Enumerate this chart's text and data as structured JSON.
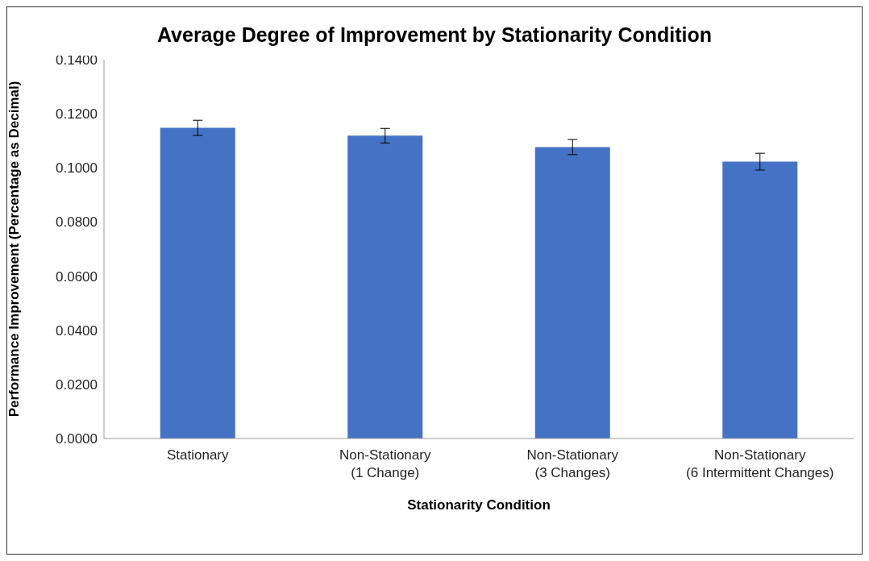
{
  "chart_data": {
    "type": "bar",
    "title": "Average Degree of Improvement by Stationarity Condition",
    "xlabel": "Stationarity Condition",
    "ylabel": "Performance Improvement (Percentage as Decimal)",
    "categories": [
      "Stationary",
      "Non-Stationary\n(1 Change)",
      "Non-Stationary\n(3 Changes)",
      "Non-Stationary\n(6 Intermittent Changes)"
    ],
    "values": [
      0.1148,
      0.1119,
      0.1077,
      0.1023
    ],
    "errors": [
      0.0028,
      0.0027,
      0.0028,
      0.0031
    ],
    "color": "#4472c4",
    "ylim": [
      0,
      0.14
    ],
    "yticks": [
      {
        "value": 0,
        "label": "0.0000"
      },
      {
        "value": 0.02,
        "label": "0.0200"
      },
      {
        "value": 0.04,
        "label": "0.0400"
      },
      {
        "value": 0.06,
        "label": "0.0600"
      },
      {
        "value": 0.08,
        "label": "0.0800"
      },
      {
        "value": 0.1,
        "label": "0.1000"
      },
      {
        "value": 0.12,
        "label": "0.1200"
      },
      {
        "value": 0.14,
        "label": "0.1400"
      }
    ],
    "grid": false,
    "legend": false
  }
}
